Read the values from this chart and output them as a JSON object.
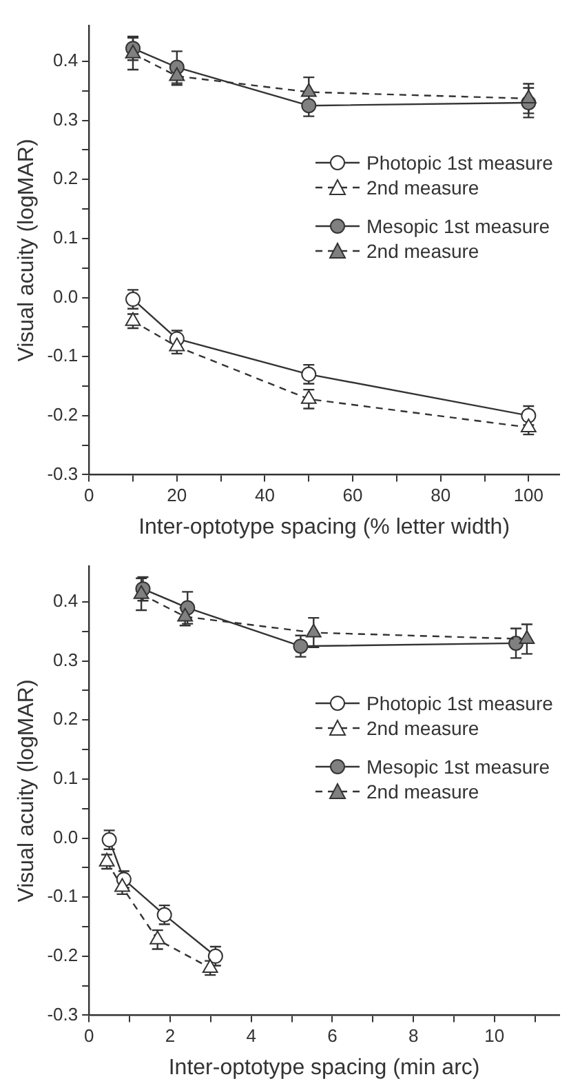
{
  "chart_data": [
    {
      "type": "line",
      "xlabel": "Inter-optotype spacing (% letter width)",
      "ylabel": "Visual acuity (logMAR)",
      "xlim": [
        0,
        107
      ],
      "xticks": [
        0,
        {
          "value": 10,
          "label": null
        },
        20,
        {
          "value": 30,
          "label": null
        },
        40,
        {
          "value": 50,
          "label": null
        },
        60,
        {
          "value": 70,
          "label": null
        },
        80,
        {
          "value": 90,
          "label": null
        },
        100
      ],
      "ylim": [
        -0.3,
        0.46
      ],
      "yticks": [
        -0.3,
        {
          "value": -0.25,
          "label": null
        },
        -0.2,
        {
          "value": -0.15,
          "label": null
        },
        -0.1,
        {
          "value": -0.05,
          "label": null
        },
        {
          "value": 0,
          "label": "0.0"
        },
        {
          "value": 0.05,
          "label": null
        },
        0.1,
        {
          "value": 0.15,
          "label": null
        },
        0.2,
        {
          "value": 0.25,
          "label": null
        },
        0.3,
        {
          "value": 0.35,
          "label": null
        },
        0.4
      ],
      "grid": false,
      "legend": "right",
      "series": [
        {
          "name": "Photopic 1st measure",
          "color": "#ffffff",
          "marker": "circle",
          "line_style": "solid",
          "x": [
            10,
            20,
            50,
            100
          ],
          "values": [
            -0.003,
            -0.07,
            -0.13,
            -0.2
          ],
          "errors": [
            0.016,
            0.014,
            0.016,
            0.016
          ]
        },
        {
          "name": "2nd measure",
          "color": "#ffffff",
          "marker": "triangle",
          "line_style": "dashed",
          "x": [
            10,
            20,
            50,
            100
          ],
          "values": [
            -0.04,
            -0.083,
            -0.172,
            -0.22
          ],
          "errors": [
            0.012,
            0.012,
            0.016,
            0.012
          ]
        },
        {
          "name": "Mesopic 1st measure",
          "color": "#808080",
          "marker": "circle",
          "line_style": "solid",
          "x": [
            10,
            20,
            50,
            100
          ],
          "values": [
            0.422,
            0.39,
            0.325,
            0.33
          ],
          "errors": [
            0.02,
            0.027,
            0.018,
            0.025
          ]
        },
        {
          "name": "2nd measure",
          "color": "#808080",
          "marker": "triangle",
          "line_style": "dashed",
          "x": [
            10,
            20,
            50,
            100
          ],
          "values": [
            0.413,
            0.375,
            0.348,
            0.337
          ],
          "errors": [
            0.027,
            0.015,
            0.025,
            0.025
          ]
        }
      ]
    },
    {
      "type": "line",
      "xlabel": "Inter-optotype spacing (min arc)",
      "ylabel": "Visual acuity (logMAR)",
      "xlim": [
        0,
        11.6
      ],
      "xticks": [
        0,
        {
          "value": 1,
          "label": null
        },
        2,
        {
          "value": 3,
          "label": null
        },
        4,
        {
          "value": 5,
          "label": null
        },
        6,
        {
          "value": 7,
          "label": null
        },
        8,
        {
          "value": 9,
          "label": null
        },
        10,
        {
          "value": 11,
          "label": null
        }
      ],
      "ylim": [
        -0.3,
        0.46
      ],
      "yticks": [
        -0.3,
        {
          "value": -0.25,
          "label": null
        },
        -0.2,
        {
          "value": -0.15,
          "label": null
        },
        -0.1,
        {
          "value": -0.05,
          "label": null
        },
        {
          "value": 0,
          "label": "0.0"
        },
        {
          "value": 0.05,
          "label": null
        },
        0.1,
        {
          "value": 0.15,
          "label": null
        },
        0.2,
        {
          "value": 0.25,
          "label": null
        },
        0.3,
        {
          "value": 0.35,
          "label": null
        },
        0.4
      ],
      "grid": false,
      "legend": "right",
      "series": [
        {
          "name": "Photopic 1st measure",
          "color": "#ffffff",
          "marker": "circle",
          "line_style": "solid",
          "x": [
            0.5,
            0.86,
            1.86,
            3.12
          ],
          "values": [
            -0.003,
            -0.07,
            -0.13,
            -0.2
          ],
          "errors": [
            0.016,
            0.014,
            0.016,
            0.016
          ]
        },
        {
          "name": "2nd measure",
          "color": "#ffffff",
          "marker": "triangle",
          "line_style": "dashed",
          "x": [
            0.44,
            0.82,
            1.69,
            2.99
          ],
          "values": [
            -0.04,
            -0.083,
            -0.172,
            -0.22
          ],
          "errors": [
            0.012,
            0.012,
            0.016,
            0.012
          ]
        },
        {
          "name": "Mesopic 1st measure",
          "color": "#808080",
          "marker": "circle",
          "line_style": "solid",
          "x": [
            1.33,
            2.43,
            5.22,
            10.53
          ],
          "values": [
            0.422,
            0.39,
            0.325,
            0.33
          ],
          "errors": [
            0.02,
            0.027,
            0.018,
            0.025
          ]
        },
        {
          "name": "2nd measure",
          "color": "#808080",
          "marker": "triangle",
          "line_style": "dashed",
          "x": [
            1.29,
            2.37,
            5.54,
            10.8
          ],
          "values": [
            0.413,
            0.375,
            0.348,
            0.337
          ],
          "errors": [
            0.027,
            0.015,
            0.025,
            0.025
          ]
        }
      ]
    }
  ]
}
